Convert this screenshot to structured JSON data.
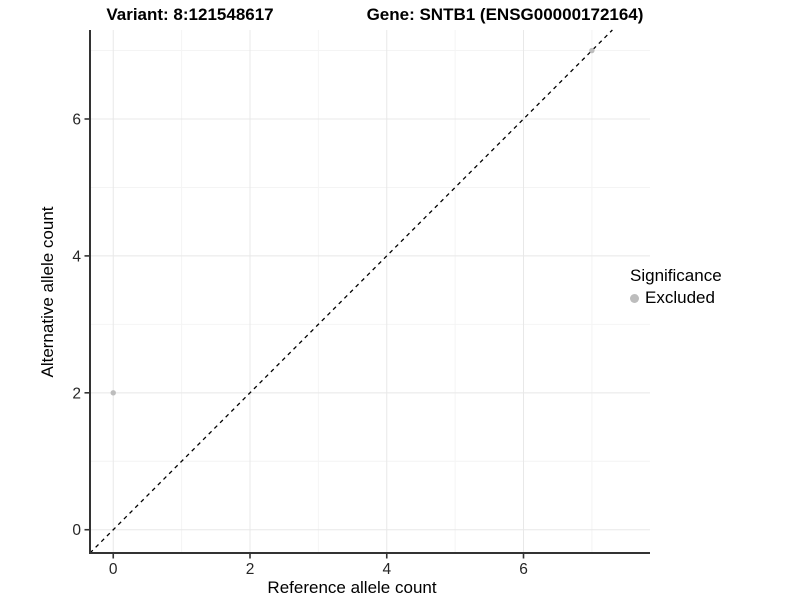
{
  "titles": {
    "variant": "Variant: 8:121548617",
    "gene": "Gene: SNTB1 (ENSG00000172164)"
  },
  "chart_data": {
    "type": "scatter",
    "xlabel": "Reference allele count",
    "ylabel": "Alternative allele count",
    "x_ticks": [
      0,
      2,
      4,
      6
    ],
    "y_ticks": [
      0,
      2,
      4,
      6
    ],
    "x_minor_gridlines": [
      1,
      3,
      5,
      7
    ],
    "y_minor_gridlines": [
      1,
      3,
      5,
      7
    ],
    "xlim": [
      -0.34,
      7.85
    ],
    "ylim": [
      -0.34,
      7.3
    ],
    "grid": "major+minor",
    "reference_line": {
      "equation": "y = x",
      "style": "dashed",
      "color": "#000000"
    },
    "series": [
      {
        "name": "Excluded",
        "color": "#bdbdbd",
        "points": [
          {
            "x": 0,
            "y": 2
          },
          {
            "x": 7,
            "y": 7
          }
        ]
      }
    ],
    "legend": {
      "title": "Significance",
      "position": "right",
      "items": [
        {
          "label": "Excluded",
          "color": "#bdbdbd"
        }
      ]
    },
    "colors": {
      "axis_line": "#333333",
      "tick_mark": "#333333",
      "tick_label": "#262626",
      "grid_major": "#e8e8e8",
      "grid_minor": "#f4f4f4",
      "background": "#ffffff"
    }
  }
}
